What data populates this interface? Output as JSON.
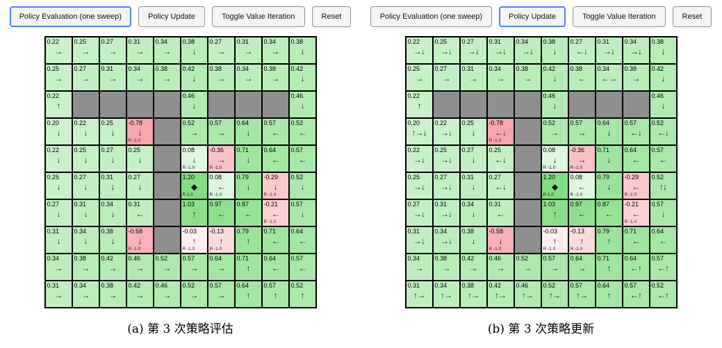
{
  "colors": {
    "accent_active_border": "#4a86e8",
    "button_bg": "#f4f4f4",
    "button_border": "#8f8f8f",
    "wall": "#8f8f8f",
    "positive_max": "#80dd80",
    "negative_max": "#f79aa1",
    "cell_border": "#000000",
    "page_bg": "#ffffff"
  },
  "symbols": {
    "goal_marker": "◆"
  },
  "toolbar": {
    "labels": [
      "Policy Evaluation (one sweep)",
      "Policy Update",
      "Toggle Value Iteration",
      "Reset"
    ]
  },
  "panels": [
    {
      "caption": "(a) 第 3 次策略评估",
      "active_button": 0,
      "grid": [
        [
          {
            "v": "0.22",
            "a": "→"
          },
          {
            "v": "0.25",
            "a": "→"
          },
          {
            "v": "0.27",
            "a": "→"
          },
          {
            "v": "0.31",
            "a": "→"
          },
          {
            "v": "0.34",
            "a": "→"
          },
          {
            "v": "0.38",
            "a": "↓"
          },
          {
            "v": "0.27",
            "a": "→"
          },
          {
            "v": "0.31",
            "a": "→"
          },
          {
            "v": "0.34",
            "a": "→"
          },
          {
            "v": "0.38",
            "a": "↓"
          }
        ],
        [
          {
            "v": "0.25",
            "a": "→"
          },
          {
            "v": "0.27",
            "a": "→"
          },
          {
            "v": "0.31",
            "a": "→"
          },
          {
            "v": "0.34",
            "a": "→"
          },
          {
            "v": "0.38",
            "a": "→"
          },
          {
            "v": "0.42",
            "a": "↓"
          },
          {
            "v": "0.38",
            "a": "→"
          },
          {
            "v": "0.34",
            "a": "→"
          },
          {
            "v": "0.38",
            "a": "→"
          },
          {
            "v": "0.42",
            "a": "↓"
          }
        ],
        [
          {
            "v": "0.22",
            "a": "↑"
          },
          "W",
          "W",
          "W",
          "W",
          {
            "v": "0.46",
            "a": "↓"
          },
          "W",
          "W",
          "W",
          {
            "v": "0.46",
            "a": "↓"
          }
        ],
        [
          {
            "v": "0.20",
            "a": "↓"
          },
          {
            "v": "0.22",
            "a": "↓"
          },
          {
            "v": "0.25",
            "a": "↓"
          },
          {
            "v": "-0.78",
            "a": "↓",
            "r": "R -1.0"
          },
          "W",
          {
            "v": "0.52",
            "a": "→"
          },
          {
            "v": "0.57",
            "a": "→"
          },
          {
            "v": "0.64",
            "a": "↓"
          },
          {
            "v": "0.57",
            "a": "←"
          },
          {
            "v": "0.52",
            "a": "←"
          }
        ],
        [
          {
            "v": "0.22",
            "a": "↓"
          },
          {
            "v": "0.25",
            "a": "↓"
          },
          {
            "v": "0.27",
            "a": "↓"
          },
          {
            "v": "0.25",
            "a": "↓"
          },
          "W",
          {
            "v": "0.08",
            "a": "↓",
            "r": "R -1.0"
          },
          {
            "v": "-0.36",
            "a": "→",
            "r": "R -1.0"
          },
          {
            "v": "0.71",
            "a": "↓"
          },
          {
            "v": "0.64",
            "a": "←"
          },
          {
            "v": "0.57",
            "a": "←"
          }
        ],
        [
          {
            "v": "0.25",
            "a": "↓"
          },
          {
            "v": "0.27",
            "a": "↓"
          },
          {
            "v": "0.31",
            "a": "↓"
          },
          {
            "v": "0.27",
            "a": "↓"
          },
          "W",
          {
            "v": "1.20",
            "goal": true,
            "r": "R 1.0"
          },
          {
            "v": "0.08",
            "a": "←",
            "r": "R -1.0"
          },
          {
            "v": "0.79",
            "a": "↓"
          },
          {
            "v": "-0.29",
            "a": "↓",
            "r": "R -1.0"
          },
          {
            "v": "0.52",
            "a": "↓"
          }
        ],
        [
          {
            "v": "0.27",
            "a": "↓"
          },
          {
            "v": "0.31",
            "a": "↓"
          },
          {
            "v": "0.34",
            "a": "↓"
          },
          {
            "v": "0.31",
            "a": "←"
          },
          "W",
          {
            "v": "1.03",
            "a": "↑"
          },
          {
            "v": "0.97",
            "a": "←"
          },
          {
            "v": "0.87",
            "a": "←"
          },
          {
            "v": "-0.21",
            "a": "←",
            "r": "R -1.0"
          },
          {
            "v": "0.57",
            "a": "↓"
          }
        ],
        [
          {
            "v": "0.31",
            "a": "↓"
          },
          {
            "v": "0.34",
            "a": "↓"
          },
          {
            "v": "0.38",
            "a": "↓"
          },
          {
            "v": "-0.58",
            "a": "↓",
            "r": "R -1.0"
          },
          "W",
          {
            "v": "-0.03",
            "a": "↑",
            "r": "R -1.0"
          },
          {
            "v": "-0.13",
            "a": "↑",
            "r": "R -1.0"
          },
          {
            "v": "0.79",
            "a": "↑"
          },
          {
            "v": "0.71",
            "a": "←"
          },
          {
            "v": "0.64",
            "a": "←"
          }
        ],
        [
          {
            "v": "0.34",
            "a": "→"
          },
          {
            "v": "0.38",
            "a": "→"
          },
          {
            "v": "0.42",
            "a": "→"
          },
          {
            "v": "0.46",
            "a": "→"
          },
          {
            "v": "0.52",
            "a": "→"
          },
          {
            "v": "0.57",
            "a": "→"
          },
          {
            "v": "0.64",
            "a": "→"
          },
          {
            "v": "0.71",
            "a": "↑"
          },
          {
            "v": "0.64",
            "a": "←"
          },
          {
            "v": "0.57",
            "a": "←"
          }
        ],
        [
          {
            "v": "0.31",
            "a": "→"
          },
          {
            "v": "0.34",
            "a": "→"
          },
          {
            "v": "0.38",
            "a": "→"
          },
          {
            "v": "0.42",
            "a": "→"
          },
          {
            "v": "0.46",
            "a": "→"
          },
          {
            "v": "0.52",
            "a": "→"
          },
          {
            "v": "0.57",
            "a": "→"
          },
          {
            "v": "0.64",
            "a": "↑"
          },
          {
            "v": "0.57",
            "a": "↑"
          },
          {
            "v": "0.52",
            "a": "↑"
          }
        ]
      ]
    },
    {
      "caption": "(b) 第 3 次策略更新",
      "active_button": 1,
      "grid": [
        [
          {
            "v": "0.22",
            "a": "→↓"
          },
          {
            "v": "0.25",
            "a": "→↓"
          },
          {
            "v": "0.27",
            "a": "→↓"
          },
          {
            "v": "0.31",
            "a": "→↓"
          },
          {
            "v": "0.34",
            "a": "→↓"
          },
          {
            "v": "0.38",
            "a": "↓"
          },
          {
            "v": "0.27",
            "a": "←↓"
          },
          {
            "v": "0.31",
            "a": "→↓"
          },
          {
            "v": "0.34",
            "a": "→↓"
          },
          {
            "v": "0.38",
            "a": "↓"
          }
        ],
        [
          {
            "v": "0.25",
            "a": "→"
          },
          {
            "v": "0.27",
            "a": "→"
          },
          {
            "v": "0.31",
            "a": "→"
          },
          {
            "v": "0.34",
            "a": "→"
          },
          {
            "v": "0.38",
            "a": "→"
          },
          {
            "v": "0.42",
            "a": "↓"
          },
          {
            "v": "0.38",
            "a": "←"
          },
          {
            "v": "0.34",
            "a": "←→"
          },
          {
            "v": "0.38",
            "a": "→"
          },
          {
            "v": "0.42",
            "a": "↓"
          }
        ],
        [
          {
            "v": "0.22",
            "a": "↑"
          },
          "W",
          "W",
          "W",
          "W",
          {
            "v": "0.46",
            "a": "↓"
          },
          "W",
          "W",
          "W",
          {
            "v": "0.46",
            "a": "↓"
          }
        ],
        [
          {
            "v": "0.20",
            "a": "↑→↓"
          },
          {
            "v": "0.22",
            "a": "→↓"
          },
          {
            "v": "0.25",
            "a": "↓"
          },
          {
            "v": "-0.78",
            "a": "←↓",
            "r": "R -1.0"
          },
          "W",
          {
            "v": "0.52",
            "a": "→"
          },
          {
            "v": "0.57",
            "a": "→"
          },
          {
            "v": "0.64",
            "a": "↓"
          },
          {
            "v": "0.57",
            "a": "←↓"
          },
          {
            "v": "0.52",
            "a": "←↓"
          }
        ],
        [
          {
            "v": "0.22",
            "a": "→↓"
          },
          {
            "v": "0.25",
            "a": "→↓"
          },
          {
            "v": "0.27",
            "a": "↓"
          },
          {
            "v": "0.25",
            "a": "←↓"
          },
          "W",
          {
            "v": "0.08",
            "a": "↓",
            "r": "R -1.0"
          },
          {
            "v": "-0.36",
            "a": "→",
            "r": "R -1.0"
          },
          {
            "v": "0.71",
            "a": "↓"
          },
          {
            "v": "0.64",
            "a": "←"
          },
          {
            "v": "0.57",
            "a": "←"
          }
        ],
        [
          {
            "v": "0.25",
            "a": "→↓"
          },
          {
            "v": "0.27",
            "a": "→↓"
          },
          {
            "v": "0.31",
            "a": "↓"
          },
          {
            "v": "0.27",
            "a": "←↓"
          },
          "W",
          {
            "v": "1.20",
            "goal": true,
            "r": "R 1.0"
          },
          {
            "v": "0.08",
            "a": "←",
            "r": "R -1.0"
          },
          {
            "v": "0.79",
            "a": "↓"
          },
          {
            "v": "-0.29",
            "a": "←",
            "r": "R -1.0"
          },
          {
            "v": "0.52",
            "a": "↑↓"
          }
        ],
        [
          {
            "v": "0.27",
            "a": "→↓"
          },
          {
            "v": "0.31",
            "a": "→↓"
          },
          {
            "v": "0.34",
            "a": "↓"
          },
          {
            "v": "0.31",
            "a": "←"
          },
          "W",
          {
            "v": "1.03",
            "a": "↑"
          },
          {
            "v": "0.97",
            "a": "←"
          },
          {
            "v": "0.87",
            "a": "←"
          },
          {
            "v": "-0.21",
            "a": "←",
            "r": "R -1.0"
          },
          {
            "v": "0.57",
            "a": "↓"
          }
        ],
        [
          {
            "v": "0.31",
            "a": "→↓"
          },
          {
            "v": "0.34",
            "a": "→↓"
          },
          {
            "v": "0.38",
            "a": "↓"
          },
          {
            "v": "-0.58",
            "a": "↓",
            "r": "R -1.0"
          },
          "W",
          {
            "v": "-0.03",
            "a": "↑",
            "r": "R -1.0"
          },
          {
            "v": "-0.13",
            "a": "↑",
            "r": "R -1.0"
          },
          {
            "v": "0.79",
            "a": "↑"
          },
          {
            "v": "0.71",
            "a": "←"
          },
          {
            "v": "0.64",
            "a": "←"
          }
        ],
        [
          {
            "v": "0.34",
            "a": "→"
          },
          {
            "v": "0.38",
            "a": "→"
          },
          {
            "v": "0.42",
            "a": "→"
          },
          {
            "v": "0.46",
            "a": "→"
          },
          {
            "v": "0.52",
            "a": "→"
          },
          {
            "v": "0.57",
            "a": "→"
          },
          {
            "v": "0.64",
            "a": "→"
          },
          {
            "v": "0.71",
            "a": "↑"
          },
          {
            "v": "0.64",
            "a": "←↑"
          },
          {
            "v": "0.57",
            "a": "←↑"
          }
        ],
        [
          {
            "v": "0.31",
            "a": "↑→"
          },
          {
            "v": "0.34",
            "a": "↑→"
          },
          {
            "v": "0.38",
            "a": "↑→"
          },
          {
            "v": "0.42",
            "a": "↑→"
          },
          {
            "v": "0.46",
            "a": "↑→"
          },
          {
            "v": "0.52",
            "a": "↑→"
          },
          {
            "v": "0.57",
            "a": "↑→"
          },
          {
            "v": "0.64",
            "a": "↑"
          },
          {
            "v": "0.57",
            "a": "←↑"
          },
          {
            "v": "0.52",
            "a": "←↑"
          }
        ]
      ]
    }
  ]
}
